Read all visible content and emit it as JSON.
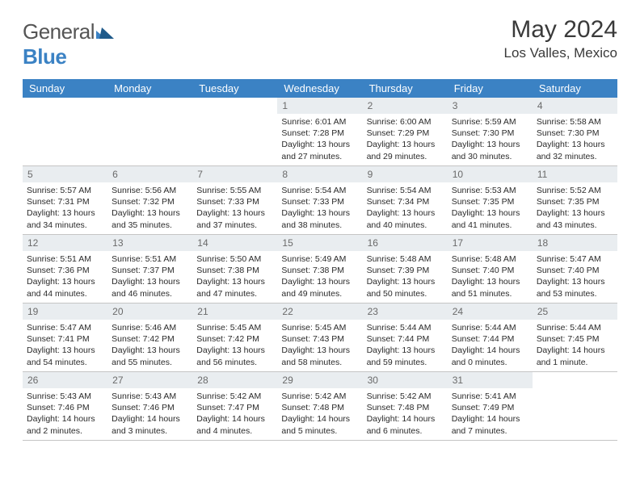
{
  "brand": {
    "name1": "General",
    "name2": "Blue"
  },
  "title": "May 2024",
  "location": "Los Valles, Mexico",
  "header_bg": "#3b82c4",
  "daynum_bg": "#e9edf0",
  "border_color": "#c5c5c5",
  "weekdays": [
    "Sunday",
    "Monday",
    "Tuesday",
    "Wednesday",
    "Thursday",
    "Friday",
    "Saturday"
  ],
  "weeks": [
    [
      {
        "empty": true
      },
      {
        "empty": true
      },
      {
        "empty": true
      },
      {
        "n": "1",
        "sr": "6:01 AM",
        "ss": "7:28 PM",
        "dl": "13 hours and 27 minutes."
      },
      {
        "n": "2",
        "sr": "6:00 AM",
        "ss": "7:29 PM",
        "dl": "13 hours and 29 minutes."
      },
      {
        "n": "3",
        "sr": "5:59 AM",
        "ss": "7:30 PM",
        "dl": "13 hours and 30 minutes."
      },
      {
        "n": "4",
        "sr": "5:58 AM",
        "ss": "7:30 PM",
        "dl": "13 hours and 32 minutes."
      }
    ],
    [
      {
        "n": "5",
        "sr": "5:57 AM",
        "ss": "7:31 PM",
        "dl": "13 hours and 34 minutes."
      },
      {
        "n": "6",
        "sr": "5:56 AM",
        "ss": "7:32 PM",
        "dl": "13 hours and 35 minutes."
      },
      {
        "n": "7",
        "sr": "5:55 AM",
        "ss": "7:33 PM",
        "dl": "13 hours and 37 minutes."
      },
      {
        "n": "8",
        "sr": "5:54 AM",
        "ss": "7:33 PM",
        "dl": "13 hours and 38 minutes."
      },
      {
        "n": "9",
        "sr": "5:54 AM",
        "ss": "7:34 PM",
        "dl": "13 hours and 40 minutes."
      },
      {
        "n": "10",
        "sr": "5:53 AM",
        "ss": "7:35 PM",
        "dl": "13 hours and 41 minutes."
      },
      {
        "n": "11",
        "sr": "5:52 AM",
        "ss": "7:35 PM",
        "dl": "13 hours and 43 minutes."
      }
    ],
    [
      {
        "n": "12",
        "sr": "5:51 AM",
        "ss": "7:36 PM",
        "dl": "13 hours and 44 minutes."
      },
      {
        "n": "13",
        "sr": "5:51 AM",
        "ss": "7:37 PM",
        "dl": "13 hours and 46 minutes."
      },
      {
        "n": "14",
        "sr": "5:50 AM",
        "ss": "7:38 PM",
        "dl": "13 hours and 47 minutes."
      },
      {
        "n": "15",
        "sr": "5:49 AM",
        "ss": "7:38 PM",
        "dl": "13 hours and 49 minutes."
      },
      {
        "n": "16",
        "sr": "5:48 AM",
        "ss": "7:39 PM",
        "dl": "13 hours and 50 minutes."
      },
      {
        "n": "17",
        "sr": "5:48 AM",
        "ss": "7:40 PM",
        "dl": "13 hours and 51 minutes."
      },
      {
        "n": "18",
        "sr": "5:47 AM",
        "ss": "7:40 PM",
        "dl": "13 hours and 53 minutes."
      }
    ],
    [
      {
        "n": "19",
        "sr": "5:47 AM",
        "ss": "7:41 PM",
        "dl": "13 hours and 54 minutes."
      },
      {
        "n": "20",
        "sr": "5:46 AM",
        "ss": "7:42 PM",
        "dl": "13 hours and 55 minutes."
      },
      {
        "n": "21",
        "sr": "5:45 AM",
        "ss": "7:42 PM",
        "dl": "13 hours and 56 minutes."
      },
      {
        "n": "22",
        "sr": "5:45 AM",
        "ss": "7:43 PM",
        "dl": "13 hours and 58 minutes."
      },
      {
        "n": "23",
        "sr": "5:44 AM",
        "ss": "7:44 PM",
        "dl": "13 hours and 59 minutes."
      },
      {
        "n": "24",
        "sr": "5:44 AM",
        "ss": "7:44 PM",
        "dl": "14 hours and 0 minutes."
      },
      {
        "n": "25",
        "sr": "5:44 AM",
        "ss": "7:45 PM",
        "dl": "14 hours and 1 minute."
      }
    ],
    [
      {
        "n": "26",
        "sr": "5:43 AM",
        "ss": "7:46 PM",
        "dl": "14 hours and 2 minutes."
      },
      {
        "n": "27",
        "sr": "5:43 AM",
        "ss": "7:46 PM",
        "dl": "14 hours and 3 minutes."
      },
      {
        "n": "28",
        "sr": "5:42 AM",
        "ss": "7:47 PM",
        "dl": "14 hours and 4 minutes."
      },
      {
        "n": "29",
        "sr": "5:42 AM",
        "ss": "7:48 PM",
        "dl": "14 hours and 5 minutes."
      },
      {
        "n": "30",
        "sr": "5:42 AM",
        "ss": "7:48 PM",
        "dl": "14 hours and 6 minutes."
      },
      {
        "n": "31",
        "sr": "5:41 AM",
        "ss": "7:49 PM",
        "dl": "14 hours and 7 minutes."
      },
      {
        "empty": true
      }
    ]
  ],
  "labels": {
    "sunrise": "Sunrise: ",
    "sunset": "Sunset: ",
    "daylight": "Daylight: "
  }
}
